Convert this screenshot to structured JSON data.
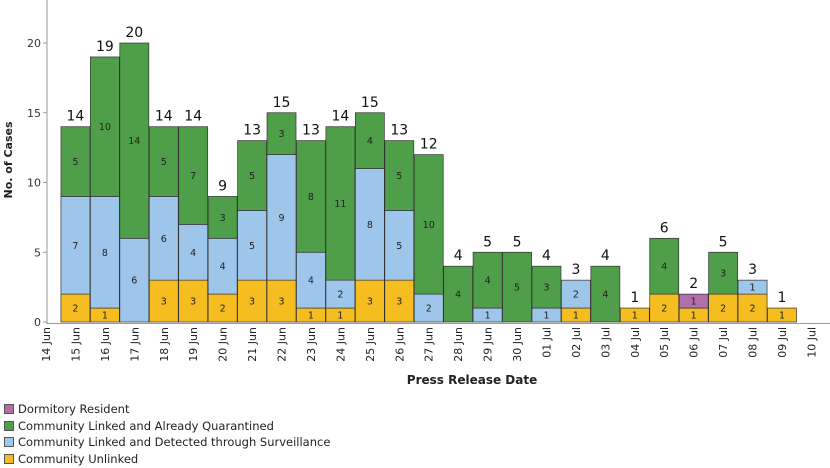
{
  "chart_data": {
    "type": "bar",
    "stacked": true,
    "xlabel": "Press Release Date",
    "ylabel": "No. of Cases",
    "ylim": [
      0,
      23
    ],
    "yticks": [
      0,
      5,
      10,
      15,
      20
    ],
    "grid": false,
    "legend_position": "bottom-left",
    "categories": [
      "14 Jun",
      "15 Jun",
      "16 Jun",
      "17 Jun",
      "18 Jun",
      "19 Jun",
      "20 Jun",
      "21 Jun",
      "22 Jun",
      "23 Jun",
      "24 Jun",
      "25 Jun",
      "26 Jun",
      "27 Jun",
      "28 Jun",
      "29 Jun",
      "30 Jun",
      "01 Jul",
      "02 Jul",
      "03 Jul",
      "04 Jul",
      "05 Jul",
      "06 Jul",
      "07 Jul",
      "08 Jul",
      "09 Jul",
      "10 Jul"
    ],
    "totals": [
      null,
      14,
      19,
      20,
      14,
      14,
      9,
      13,
      15,
      13,
      14,
      15,
      13,
      12,
      4,
      5,
      5,
      4,
      3,
      4,
      1,
      6,
      2,
      5,
      3,
      1,
      null
    ],
    "series": [
      {
        "name": "Community Unlinked",
        "color": "#f5bd1f",
        "values": [
          0,
          2,
          1,
          0,
          3,
          3,
          2,
          3,
          3,
          1,
          1,
          3,
          3,
          0,
          0,
          0,
          0,
          0,
          1,
          0,
          1,
          2,
          1,
          2,
          2,
          1,
          0
        ]
      },
      {
        "name": "Community Linked and Detected through Surveillance",
        "color": "#9ec6ea",
        "values": [
          0,
          7,
          8,
          6,
          6,
          4,
          4,
          5,
          9,
          4,
          2,
          8,
          5,
          2,
          0,
          1,
          0,
          1,
          2,
          0,
          0,
          0,
          0,
          0,
          1,
          0,
          0
        ]
      },
      {
        "name": "Community Linked and Already Quarantined",
        "color": "#4f9e49",
        "values": [
          0,
          5,
          10,
          14,
          5,
          7,
          3,
          5,
          3,
          8,
          11,
          4,
          5,
          10,
          4,
          4,
          5,
          3,
          0,
          4,
          0,
          4,
          0,
          3,
          0,
          0,
          0
        ]
      },
      {
        "name": "Dormitory Resident",
        "color": "#b06fa8",
        "values": [
          0,
          0,
          0,
          0,
          0,
          0,
          0,
          0,
          0,
          0,
          0,
          0,
          0,
          0,
          0,
          0,
          0,
          0,
          0,
          0,
          0,
          0,
          1,
          0,
          0,
          0,
          0
        ]
      }
    ]
  },
  "legend_order": [
    3,
    2,
    1,
    0
  ]
}
